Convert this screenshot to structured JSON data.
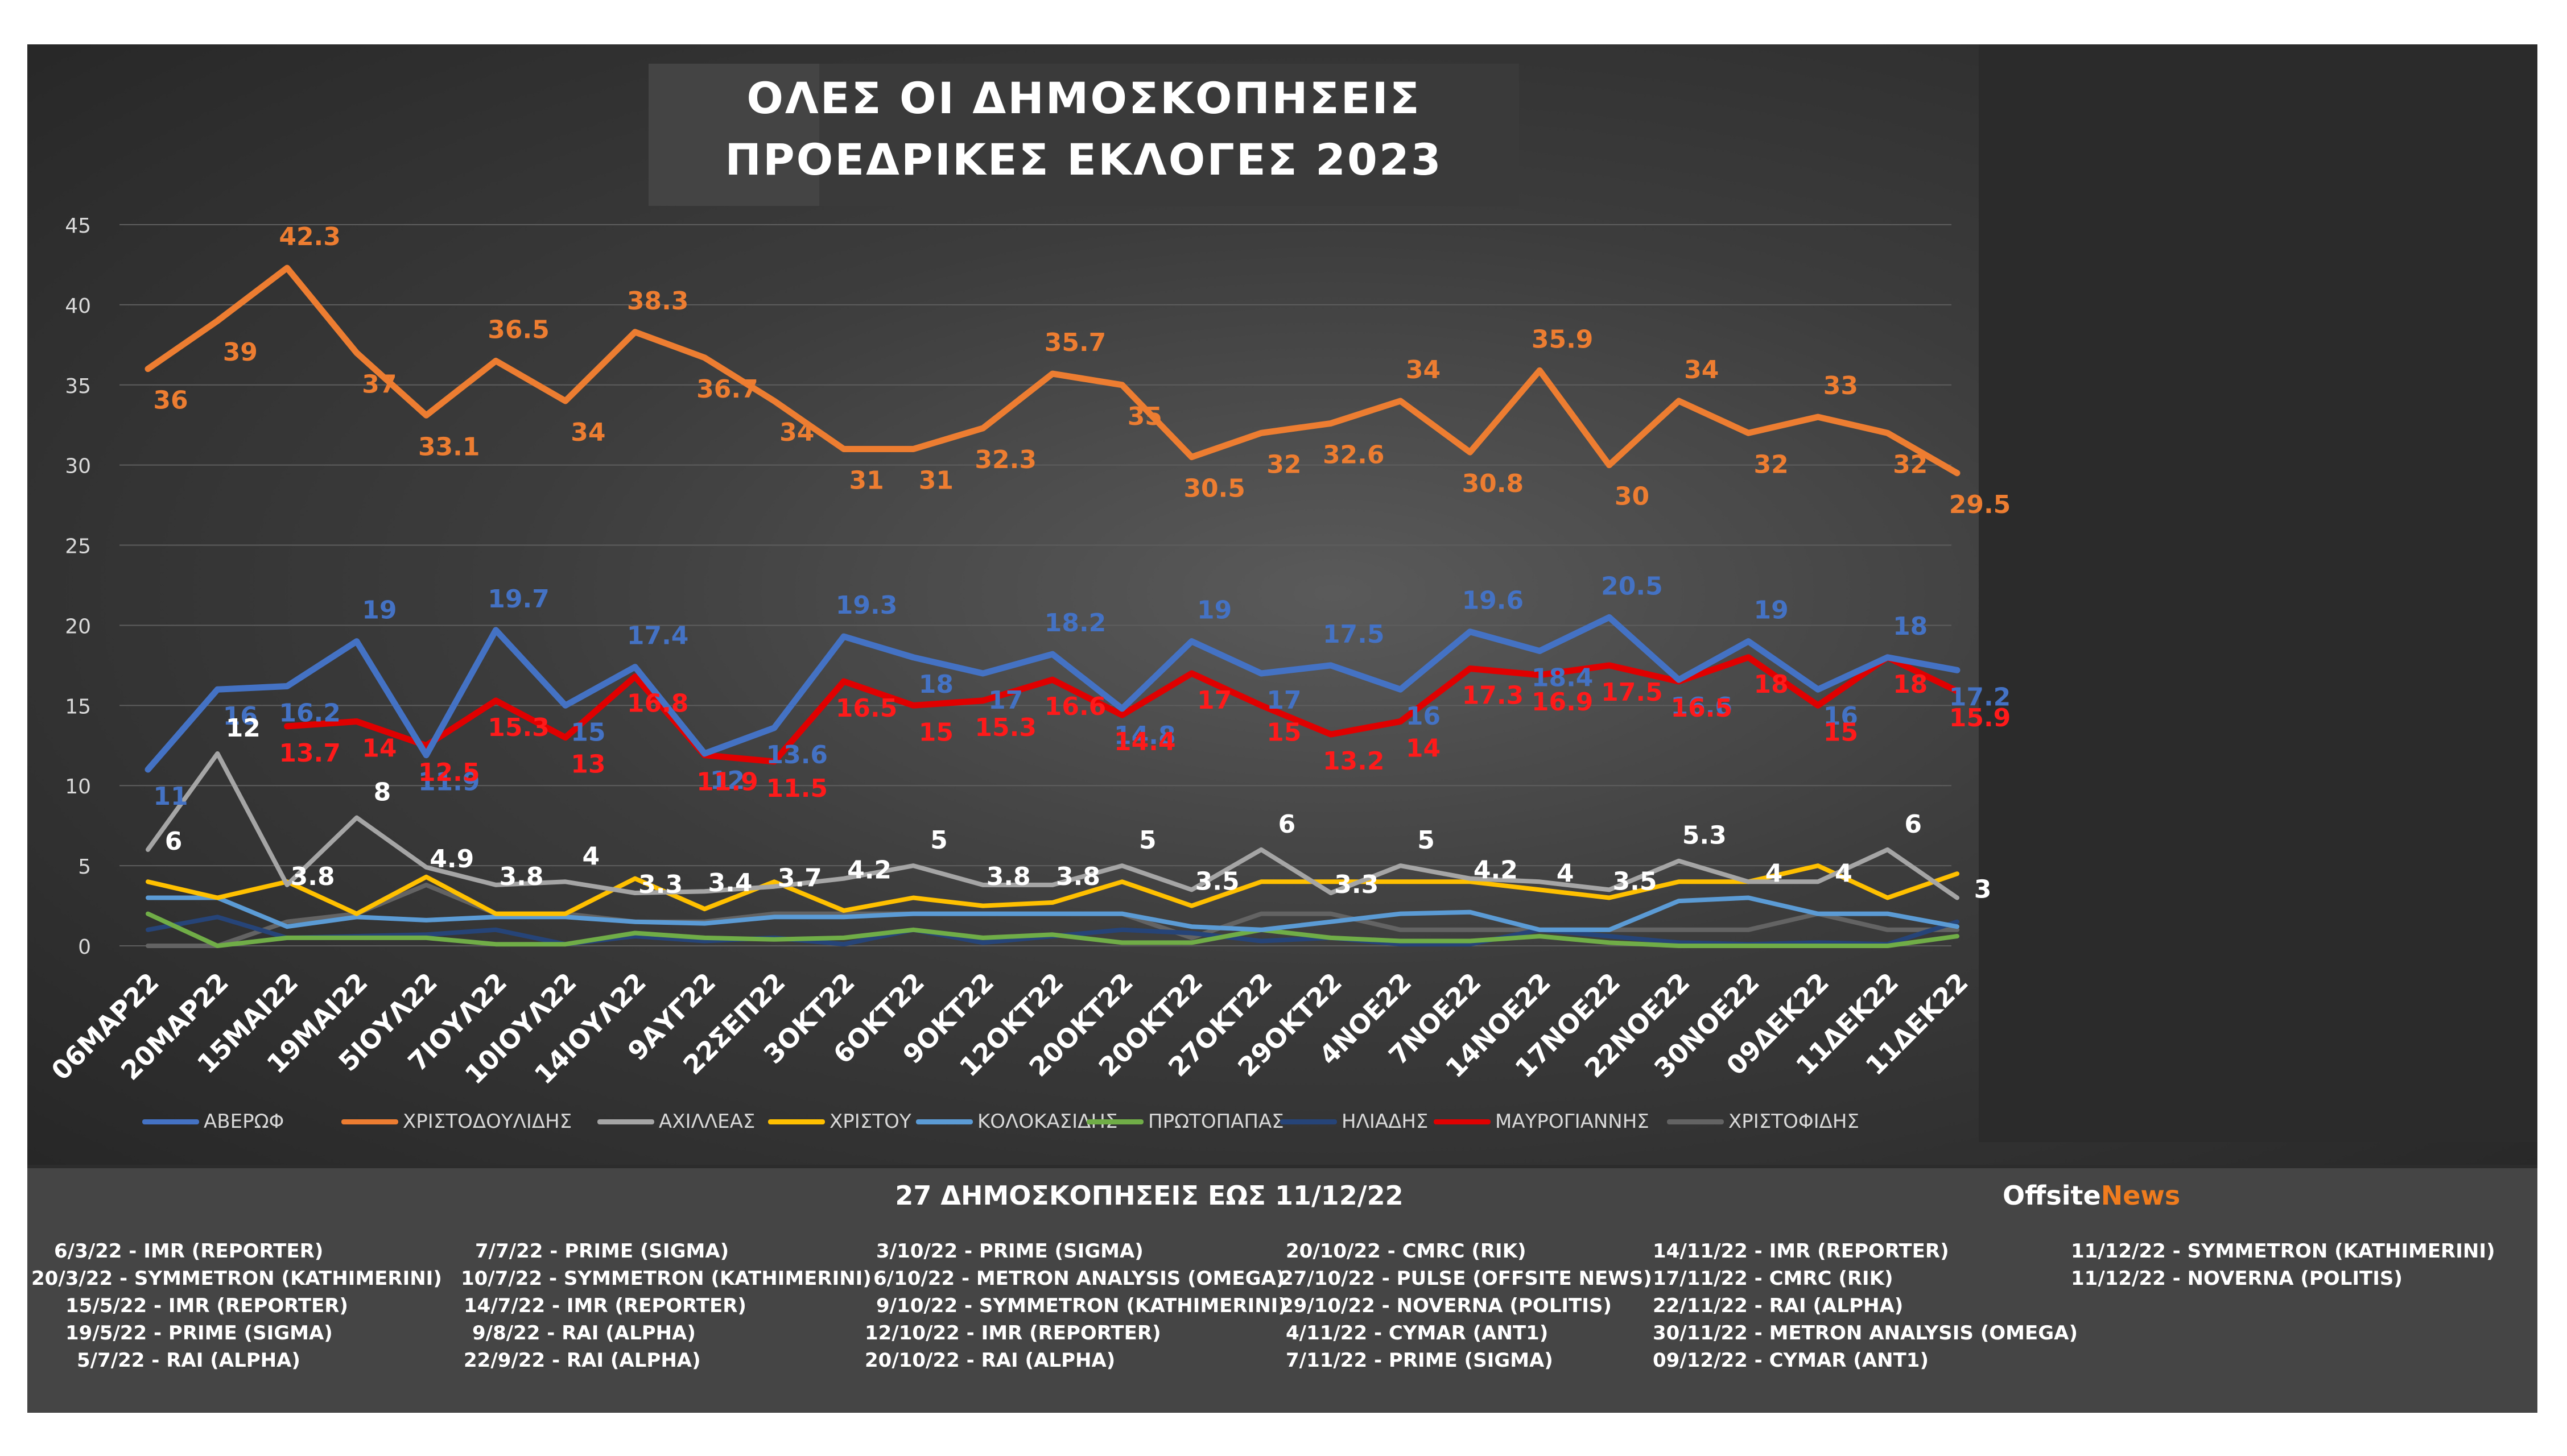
{
  "title_line1": "ΟΛΕΣ ΟΙ ΔΗΜΟΣΚΟΠΗΣΕΙΣ",
  "title_line2": "ΠΡΟΕΔΡΙΚΕΣ ΕΚΛΟΓΕΣ 2023",
  "footer_title": "27 ΔΗΜΟΣΚΟΠΗΣΕΙΣ ΕΩΣ 11/12/22",
  "brand_offsite": "Offsite",
  "brand_news": "News",
  "sources": [
    [
      "6/3/22 - IMR (REPORTER)",
      "20/3/22 - SYMMETRON (KATHIMERINI)",
      "15/5/22 - IMR (REPORTER)",
      "19/5/22 - PRIME (SIGMA)",
      "5/7/22 - RAI (ALPHA)"
    ],
    [
      "7/7/22 - PRIME (SIGMA)",
      "10/7/22 - SYMMETRON (KATHIMERINI)",
      "14/7/22 - IMR (REPORTER)",
      "9/8/22 - RAI (ALPHA)",
      "22/9/22 - RAI (ALPHA)"
    ],
    [
      "3/10/22 - PRIME (SIGMA)",
      "6/10/22 - METRON ANALYSIS (OMEGA)",
      "9/10/22 - SYMMETRON (KATHIMERINI)",
      "12/10/22 - IMR (REPORTER)",
      "20/10/22 - RAI (ALPHA)"
    ],
    [
      "20/10/22 - CMRC (RIK)",
      "27/10/22 - PULSE (OFFSITE NEWS)",
      "29/10/22 - NOVERNA (POLITIS)",
      "4/11/22 - CYMAR (ANT1)",
      "7/11/22 - PRIME (SIGMA)"
    ],
    [
      "14/11/22 - IMR (REPORTER)",
      "17/11/22 - CMRC (RIK)",
      "22/11/22 - RAI (ALPHA)",
      "30/11/22 - METRON ANALYSIS (OMEGA)",
      "09/12/22 - CYMAR (ANT1)"
    ],
    [
      "11/12/22 - SYMMETRON (KATHIMERINI)",
      "11/12/22 - NOVERNA (POLITIS)"
    ]
  ],
  "chart_data": {
    "type": "line",
    "categories": [
      "06ΜΑΡ22",
      "20ΜΑΡ22",
      "15ΜΑΙ22",
      "19ΜΑΙ22",
      "5ΙΟΥΛ22",
      "7ΙΟΥΛ22",
      "10ΙΟΥΛ22",
      "14ΙΟΥΛ22",
      "9ΑΥΓ22",
      "22ΣΕΠ22",
      "3ΟΚΤ22",
      "6ΟΚΤ22",
      "9ΟΚΤ22",
      "12ΟΚΤ22",
      "20ΟΚΤ22",
      "20ΟΚΤ22",
      "27ΟΚΤ22",
      "29ΟΚΤ22",
      "4ΝΟΕ22",
      "7ΝΟΕ22",
      "14ΝΟΕ22",
      "17ΝΟΕ22",
      "22ΝΟΕ22",
      "30ΝΟΕ22",
      "09ΔΕΚ22",
      "11ΔΕΚ22",
      "11ΔΕΚ22"
    ],
    "ylim": [
      0,
      45
    ],
    "yticks": [
      0,
      5,
      10,
      15,
      20,
      25,
      30,
      35,
      40,
      45
    ],
    "grid": true,
    "legend_position": "bottom",
    "series": [
      {
        "name": "ΑΒΕΡΩΦ",
        "color": "#4472c4",
        "label_color": "#4472c4",
        "values": [
          11,
          16,
          16.2,
          19,
          11.9,
          19.7,
          15,
          17.4,
          12,
          13.6,
          19.3,
          18,
          17,
          18.2,
          14.8,
          19,
          17,
          17.5,
          16,
          19.6,
          18.4,
          20.5,
          16.6,
          19,
          16,
          18,
          17.2
        ]
      },
      {
        "name": "ΧΡΙΣΤΟΔΟΥΛΙΔΗΣ",
        "color": "#ed7d31",
        "label_color": "#ed7d31",
        "values": [
          36,
          39,
          42.3,
          37,
          33.1,
          36.5,
          34,
          38.3,
          36.7,
          34,
          31,
          31,
          32.3,
          35.7,
          35,
          30.5,
          32,
          32.6,
          34,
          30.8,
          35.9,
          30,
          34,
          32,
          33,
          32,
          29.5
        ]
      },
      {
        "name": "ΑΧΙΛΛΕΑΣ",
        "color": "#a5a5a5",
        "label_color": "#ffffff",
        "values": [
          6,
          12,
          3.8,
          8,
          4.9,
          3.8,
          4,
          3.3,
          3.4,
          3.7,
          4.2,
          5,
          3.8,
          3.8,
          5,
          3.5,
          6,
          3.3,
          5,
          4.2,
          4,
          3.5,
          5.3,
          4,
          4,
          6,
          3
        ]
      },
      {
        "name": "ΧΡΙΣΤΟΥ",
        "color": "#ffc000",
        "label_color": "#ffc000",
        "values": [
          4,
          3,
          4,
          2,
          4.3,
          2,
          2,
          4.2,
          2.3,
          4,
          2.2,
          3,
          2.5,
          2.7,
          4,
          2.5,
          4,
          4,
          4,
          4,
          3.5,
          3,
          4,
          4,
          5,
          3,
          4.5
        ]
      },
      {
        "name": "ΚΟΛΟΚΑΣΙΔΗΣ",
        "color": "#5b9bd5",
        "label_color": "#5b9bd5",
        "values": [
          3,
          3,
          1.2,
          1.8,
          1.6,
          1.8,
          1.8,
          1.5,
          1.4,
          1.8,
          1.8,
          2,
          2,
          2,
          2,
          1.2,
          1,
          1.5,
          2,
          2.1,
          1,
          1,
          2.8,
          3,
          2,
          2,
          1.2
        ]
      },
      {
        "name": "ΠΡΩΤΟΠΑΠΑΣ",
        "color": "#70ad47",
        "label_color": "#70ad47",
        "values": [
          2,
          0,
          0.5,
          0.5,
          0.5,
          0.1,
          0.1,
          0.8,
          0.5,
          0.4,
          0.5,
          1,
          0.5,
          0.7,
          0.2,
          0.2,
          1,
          0.5,
          0.3,
          0.3,
          0.6,
          0.2,
          0,
          0,
          0,
          0,
          0.6
        ]
      },
      {
        "name": "ΗΛΙΑΔΗΣ",
        "color": "#264478",
        "label_color": "#264478",
        "values": [
          1,
          1.8,
          0.5,
          0.6,
          0.7,
          1,
          0.1,
          0.6,
          0.3,
          0.5,
          0.1,
          1,
          0.2,
          0.6,
          1,
          0.8,
          0.3,
          0.5,
          0.1,
          0.1,
          1,
          0.6,
          0.2,
          0.1,
          0.2,
          0.1,
          1.5
        ]
      },
      {
        "name": "ΜΑΥΡΟΓΙΑΝΝΗΣ",
        "color": "#e00000",
        "label_color": "#ff1a1a",
        "values": [
          null,
          null,
          13.7,
          14,
          12.5,
          15.3,
          13,
          16.8,
          11.9,
          11.5,
          16.5,
          15,
          15.3,
          16.6,
          14.4,
          17,
          15,
          13.2,
          14,
          17.3,
          16.9,
          17.5,
          16.5,
          18,
          15,
          18,
          15.9
        ]
      },
      {
        "name": "ΧΡΙΣΤΟΦΙΔΗΣ",
        "color": "#636363",
        "label_color": "#636363",
        "values": [
          0,
          0,
          1.5,
          2,
          3.8,
          2,
          2,
          1.5,
          1.5,
          2,
          2,
          2,
          2,
          2,
          2,
          0.5,
          2,
          2,
          1,
          1,
          1,
          1,
          1,
          1,
          2,
          1,
          1
        ]
      }
    ],
    "data_labels": {
      "ΑΒΕΡΩΦ": [
        11,
        16,
        16.2,
        19,
        11.9,
        19.7,
        15,
        17.4,
        12,
        13.6,
        19.3,
        18,
        17,
        18.2,
        14.8,
        19,
        17,
        17.5,
        16,
        19.6,
        18.4,
        20.5,
        16.6,
        19,
        16,
        18,
        17.2
      ],
      "ΧΡΙΣΤΟΔΟΥΛΙΔΗΣ": [
        36,
        39,
        42.3,
        37,
        33.1,
        36.5,
        34,
        38.3,
        36.7,
        34,
        31,
        31,
        32.3,
        35.7,
        35,
        30.5,
        32,
        32.6,
        34,
        30.8,
        35.9,
        30,
        34,
        32,
        33,
        32,
        29.5
      ],
      "ΑΧΙΛΛΕΑΣ": [
        6,
        12,
        3.8,
        8,
        4.9,
        3.8,
        4,
        3.3,
        3.4,
        3.7,
        4.2,
        5,
        3.8,
        3.8,
        5,
        3.5,
        6,
        3.3,
        5,
        4.2,
        4,
        3.5,
        5.3,
        4,
        4,
        6,
        3
      ],
      "ΜΑΥΡΟΓΙΑΝΝΗΣ": [
        null,
        null,
        13.7,
        14,
        12.5,
        15.3,
        13,
        16.8,
        11.9,
        11.5,
        16.5,
        15,
        15.3,
        16.6,
        14.4,
        17,
        15,
        13.2,
        14,
        17.3,
        16.9,
        17.5,
        16.5,
        18,
        15,
        18,
        15.9
      ]
    }
  }
}
